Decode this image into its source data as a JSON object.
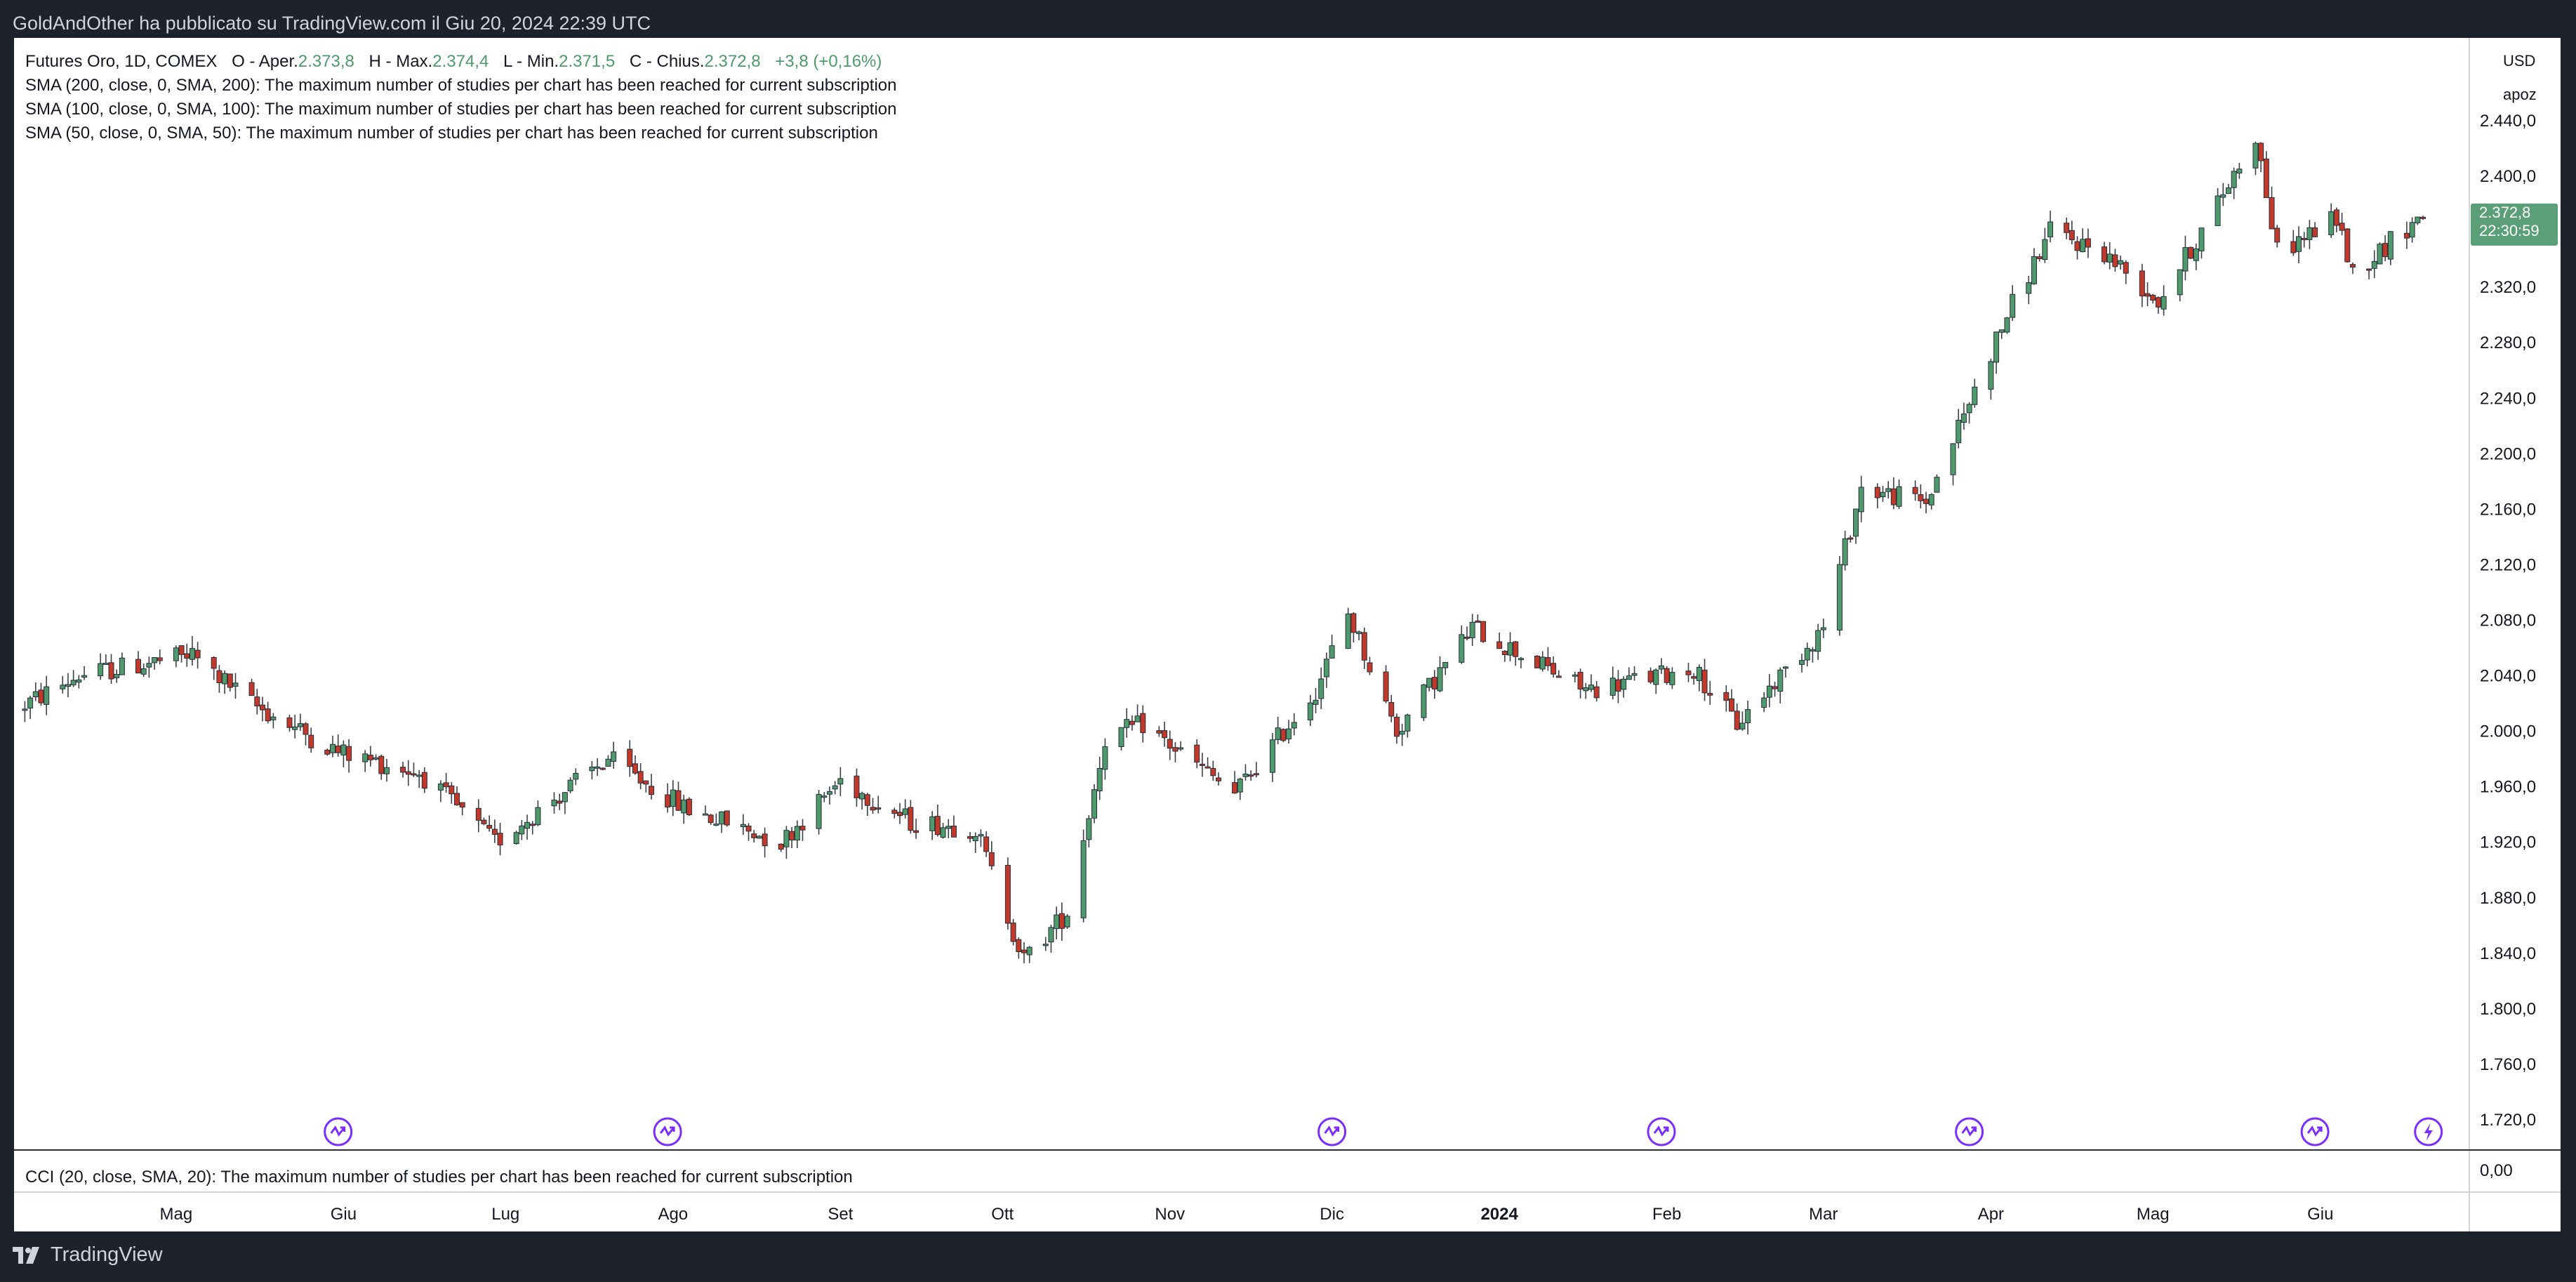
{
  "header": {
    "published": "GoldAndOther ha pubblicato su TradingView.com il Giu 20, 2024 22:39 UTC"
  },
  "legend": {
    "symbol": "Futures Oro, 1D, COMEX",
    "o_label": "O - Aper.",
    "o_value": "2.373,8",
    "h_label": "H - Max.",
    "h_value": "2.374,4",
    "l_label": "L - Min.",
    "l_value": "2.371,5",
    "c_label": "C - Chius.",
    "c_value": "2.372,8",
    "change": "+3,8 (+0,16%)",
    "studies": [
      "SMA (200, close, 0, SMA, 200): The maximum number of studies per chart has been reached for current subscription",
      "SMA (100, close, 0, SMA, 100): The maximum number of studies per chart has been reached for current subscription",
      "SMA (50, close, 0, SMA, 50): The maximum number of studies per chart has been reached for current subscription"
    ],
    "cci": "CCI (20, close, SMA, 20): The maximum number of studies per chart has been reached for current subscription"
  },
  "price_scale": {
    "currency": "USD",
    "mode": "apoz",
    "last_price": "2.372,8",
    "countdown": "22:30:59",
    "cci_zero": "0,00",
    "ticks": [
      "2.440,0",
      "2.400,0",
      "2.360,0",
      "2.320,0",
      "2.280,0",
      "2.240,0",
      "2.200,0",
      "2.160,0",
      "2.120,0",
      "2.080,0",
      "2.040,0",
      "2.000,0",
      "1.960,0",
      "1.920,0",
      "1.880,0",
      "1.840,0",
      "1.800,0",
      "1.760,0",
      "1.720,0"
    ]
  },
  "time_scale": {
    "labels": [
      "Apr",
      "Mag",
      "Giu",
      "Lug",
      "Ago",
      "Set",
      "Ott",
      "Nov",
      "Dic",
      "2024",
      "Feb",
      "Mar",
      "Apr",
      "Mag",
      "Giu"
    ]
  },
  "footer": {
    "brand": "TradingView"
  },
  "colors": {
    "up": "#4e9a6d",
    "down": "#c0392b",
    "accent_price": "#5b9f78",
    "event_icon": "#7b2cff"
  },
  "chart_data": {
    "type": "candlestick",
    "title": "Futures Oro, 1D, COMEX",
    "ylim": [
      1710,
      2445
    ],
    "events": [
      "2023-05-31",
      "2023-07-31",
      "2023-12-01",
      "2024-01-31",
      "2024-03-28",
      "2024-05-31",
      "2024-06-21"
    ],
    "anchors": [
      [
        "2023-04-01",
        2015
      ],
      [
        "2023-04-13",
        2040
      ],
      [
        "2023-05-04",
        2055
      ],
      [
        "2023-05-15",
        2020
      ],
      [
        "2023-05-31",
        1985
      ],
      [
        "2023-06-15",
        1970
      ],
      [
        "2023-06-29",
        1920
      ],
      [
        "2023-07-20",
        1980
      ],
      [
        "2023-08-03",
        1945
      ],
      [
        "2023-08-21",
        1920
      ],
      [
        "2023-09-01",
        1965
      ],
      [
        "2023-09-14",
        1935
      ],
      [
        "2023-09-26",
        1930
      ],
      [
        "2023-10-05",
        1835
      ],
      [
        "2023-10-13",
        1870
      ],
      [
        "2023-10-20",
        1995
      ],
      [
        "2023-10-27",
        2005
      ],
      [
        "2023-11-13",
        1955
      ],
      [
        "2023-11-28",
        2030
      ],
      [
        "2023-12-04",
        2085
      ],
      [
        "2023-12-13",
        2000
      ],
      [
        "2023-12-27",
        2075
      ],
      [
        "2024-01-17",
        2030
      ],
      [
        "2024-02-06",
        2045
      ],
      [
        "2024-02-14",
        2005
      ],
      [
        "2024-03-01",
        2075
      ],
      [
        "2024-03-08",
        2175
      ],
      [
        "2024-03-20",
        2165
      ],
      [
        "2024-04-04",
        2300
      ],
      [
        "2024-04-12",
        2360
      ],
      [
        "2024-04-22",
        2345
      ],
      [
        "2024-05-02",
        2310
      ],
      [
        "2024-05-10",
        2360
      ],
      [
        "2024-05-20",
        2430
      ],
      [
        "2024-05-24",
        2345
      ],
      [
        "2024-06-04",
        2370
      ],
      [
        "2024-06-07",
        2330
      ],
      [
        "2024-06-20",
        2372.8
      ]
    ]
  }
}
